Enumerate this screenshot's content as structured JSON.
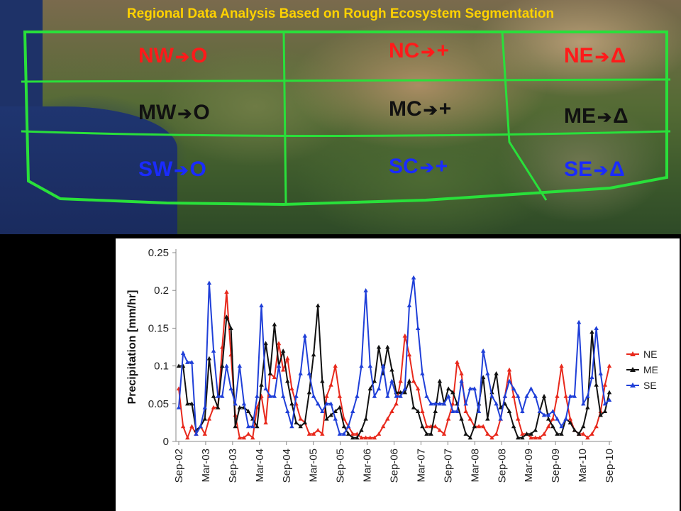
{
  "map": {
    "title": "Regional Data Analysis Based on Rough Ecosystem Segmentation",
    "regions": [
      {
        "id": "NW",
        "label": "NW",
        "symbol": "O",
        "color": "#ff1a1a"
      },
      {
        "id": "NC",
        "label": "NC",
        "symbol": "+",
        "color": "#ff1a1a"
      },
      {
        "id": "NE",
        "label": "NE",
        "symbol": "Δ",
        "color": "#ff1a1a"
      },
      {
        "id": "MW",
        "label": "MW",
        "symbol": "O",
        "color": "#111111"
      },
      {
        "id": "MC",
        "label": "MC",
        "symbol": "+",
        "color": "#111111"
      },
      {
        "id": "ME",
        "label": "ME",
        "symbol": "Δ",
        "color": "#111111"
      },
      {
        "id": "SW",
        "label": "SW",
        "symbol": "O",
        "color": "#1a2bff"
      },
      {
        "id": "SC",
        "label": "SC",
        "symbol": "+",
        "color": "#1a2bff"
      },
      {
        "id": "SE",
        "label": "SE",
        "symbol": "Δ",
        "color": "#1a2bff"
      }
    ],
    "arrow_icon": "arrow-right-icon",
    "grid_color": "#29e03a"
  },
  "chart_data": {
    "type": "line",
    "ylabel": "Precipitation [mm/hr]",
    "xlabel": "",
    "ylim": [
      0,
      0.25
    ],
    "yticks": [
      "0",
      "0.05",
      "0.1",
      "0.15",
      "0.2",
      "0.25"
    ],
    "xticks": [
      "Sep-02",
      "Mar-03",
      "Sep-03",
      "Mar-04",
      "Sep-04",
      "Mar-05",
      "Sep-05",
      "Mar-06",
      "Sep-06",
      "Mar-07",
      "Sep-07",
      "Mar-08",
      "Sep-08",
      "Mar-09",
      "Sep-09",
      "Mar-10",
      "Sep-10"
    ],
    "x_start": "Sep-02",
    "x_end": "Sep-10",
    "marker": "triangle",
    "grid": false,
    "legend": "right",
    "series": [
      {
        "name": "NE",
        "color": "#e8291c",
        "values": [
          0.07,
          0.02,
          0.005,
          0.02,
          0.01,
          0.02,
          0.01,
          0.03,
          0.045,
          0.045,
          0.125,
          0.198,
          0.115,
          0.035,
          0.005,
          0.005,
          0.01,
          0.005,
          0.045,
          0.06,
          0.025,
          0.09,
          0.085,
          0.13,
          0.095,
          0.11,
          0.07,
          0.05,
          0.03,
          0.025,
          0.01,
          0.01,
          0.015,
          0.01,
          0.06,
          0.075,
          0.1,
          0.06,
          0.03,
          0.02,
          0.01,
          0.01,
          0.005,
          0.005,
          0.005,
          0.005,
          0.01,
          0.02,
          0.03,
          0.04,
          0.05,
          0.08,
          0.14,
          0.115,
          0.08,
          0.07,
          0.04,
          0.02,
          0.02,
          0.02,
          0.015,
          0.01,
          0.03,
          0.05,
          0.105,
          0.09,
          0.04,
          0.03,
          0.02,
          0.02,
          0.02,
          0.01,
          0.005,
          0.01,
          0.03,
          0.06,
          0.095,
          0.06,
          0.03,
          0.01,
          0.01,
          0.005,
          0.005,
          0.005,
          0.01,
          0.02,
          0.03,
          0.06,
          0.1,
          0.06,
          0.03,
          0.015,
          0.01,
          0.01,
          0.005,
          0.01,
          0.02,
          0.04,
          0.075,
          0.1
        ]
      },
      {
        "name": "ME",
        "color": "#111111",
        "values": [
          0.1,
          0.1,
          0.05,
          0.05,
          0.015,
          0.02,
          0.03,
          0.11,
          0.06,
          0.045,
          0.1,
          0.165,
          0.15,
          0.02,
          0.045,
          0.045,
          0.04,
          0.03,
          0.02,
          0.075,
          0.13,
          0.09,
          0.155,
          0.1,
          0.12,
          0.08,
          0.05,
          0.025,
          0.02,
          0.025,
          0.065,
          0.115,
          0.18,
          0.08,
          0.03,
          0.035,
          0.04,
          0.045,
          0.02,
          0.01,
          0.005,
          0.005,
          0.015,
          0.03,
          0.07,
          0.08,
          0.125,
          0.09,
          0.125,
          0.095,
          0.065,
          0.065,
          0.065,
          0.08,
          0.045,
          0.04,
          0.02,
          0.01,
          0.01,
          0.04,
          0.08,
          0.05,
          0.07,
          0.065,
          0.05,
          0.03,
          0.01,
          0.005,
          0.02,
          0.05,
          0.085,
          0.03,
          0.065,
          0.09,
          0.045,
          0.05,
          0.04,
          0.02,
          0.005,
          0.005,
          0.01,
          0.01,
          0.015,
          0.04,
          0.06,
          0.03,
          0.02,
          0.01,
          0.01,
          0.03,
          0.025,
          0.015,
          0.01,
          0.02,
          0.045,
          0.145,
          0.075,
          0.035,
          0.04,
          0.065
        ]
      },
      {
        "name": "SE",
        "color": "#1f3fd8",
        "values": [
          0.045,
          0.117,
          0.105,
          0.105,
          0.01,
          0.02,
          0.045,
          0.21,
          0.12,
          0.06,
          0.06,
          0.1,
          0.07,
          0.05,
          0.1,
          0.05,
          0.02,
          0.02,
          0.06,
          0.18,
          0.07,
          0.06,
          0.06,
          0.1,
          0.06,
          0.04,
          0.02,
          0.06,
          0.09,
          0.14,
          0.09,
          0.06,
          0.05,
          0.04,
          0.05,
          0.05,
          0.03,
          0.01,
          0.01,
          0.02,
          0.04,
          0.06,
          0.1,
          0.2,
          0.1,
          0.06,
          0.07,
          0.1,
          0.06,
          0.08,
          0.06,
          0.06,
          0.07,
          0.18,
          0.217,
          0.15,
          0.09,
          0.06,
          0.05,
          0.05,
          0.05,
          0.05,
          0.06,
          0.04,
          0.04,
          0.08,
          0.05,
          0.07,
          0.07,
          0.04,
          0.12,
          0.09,
          0.06,
          0.05,
          0.03,
          0.06,
          0.08,
          0.07,
          0.06,
          0.04,
          0.06,
          0.07,
          0.06,
          0.04,
          0.035,
          0.035,
          0.04,
          0.03,
          0.02,
          0.03,
          0.06,
          0.06,
          0.158,
          0.05,
          0.06,
          0.085,
          0.15,
          0.09,
          0.05,
          0.055
        ]
      }
    ]
  }
}
